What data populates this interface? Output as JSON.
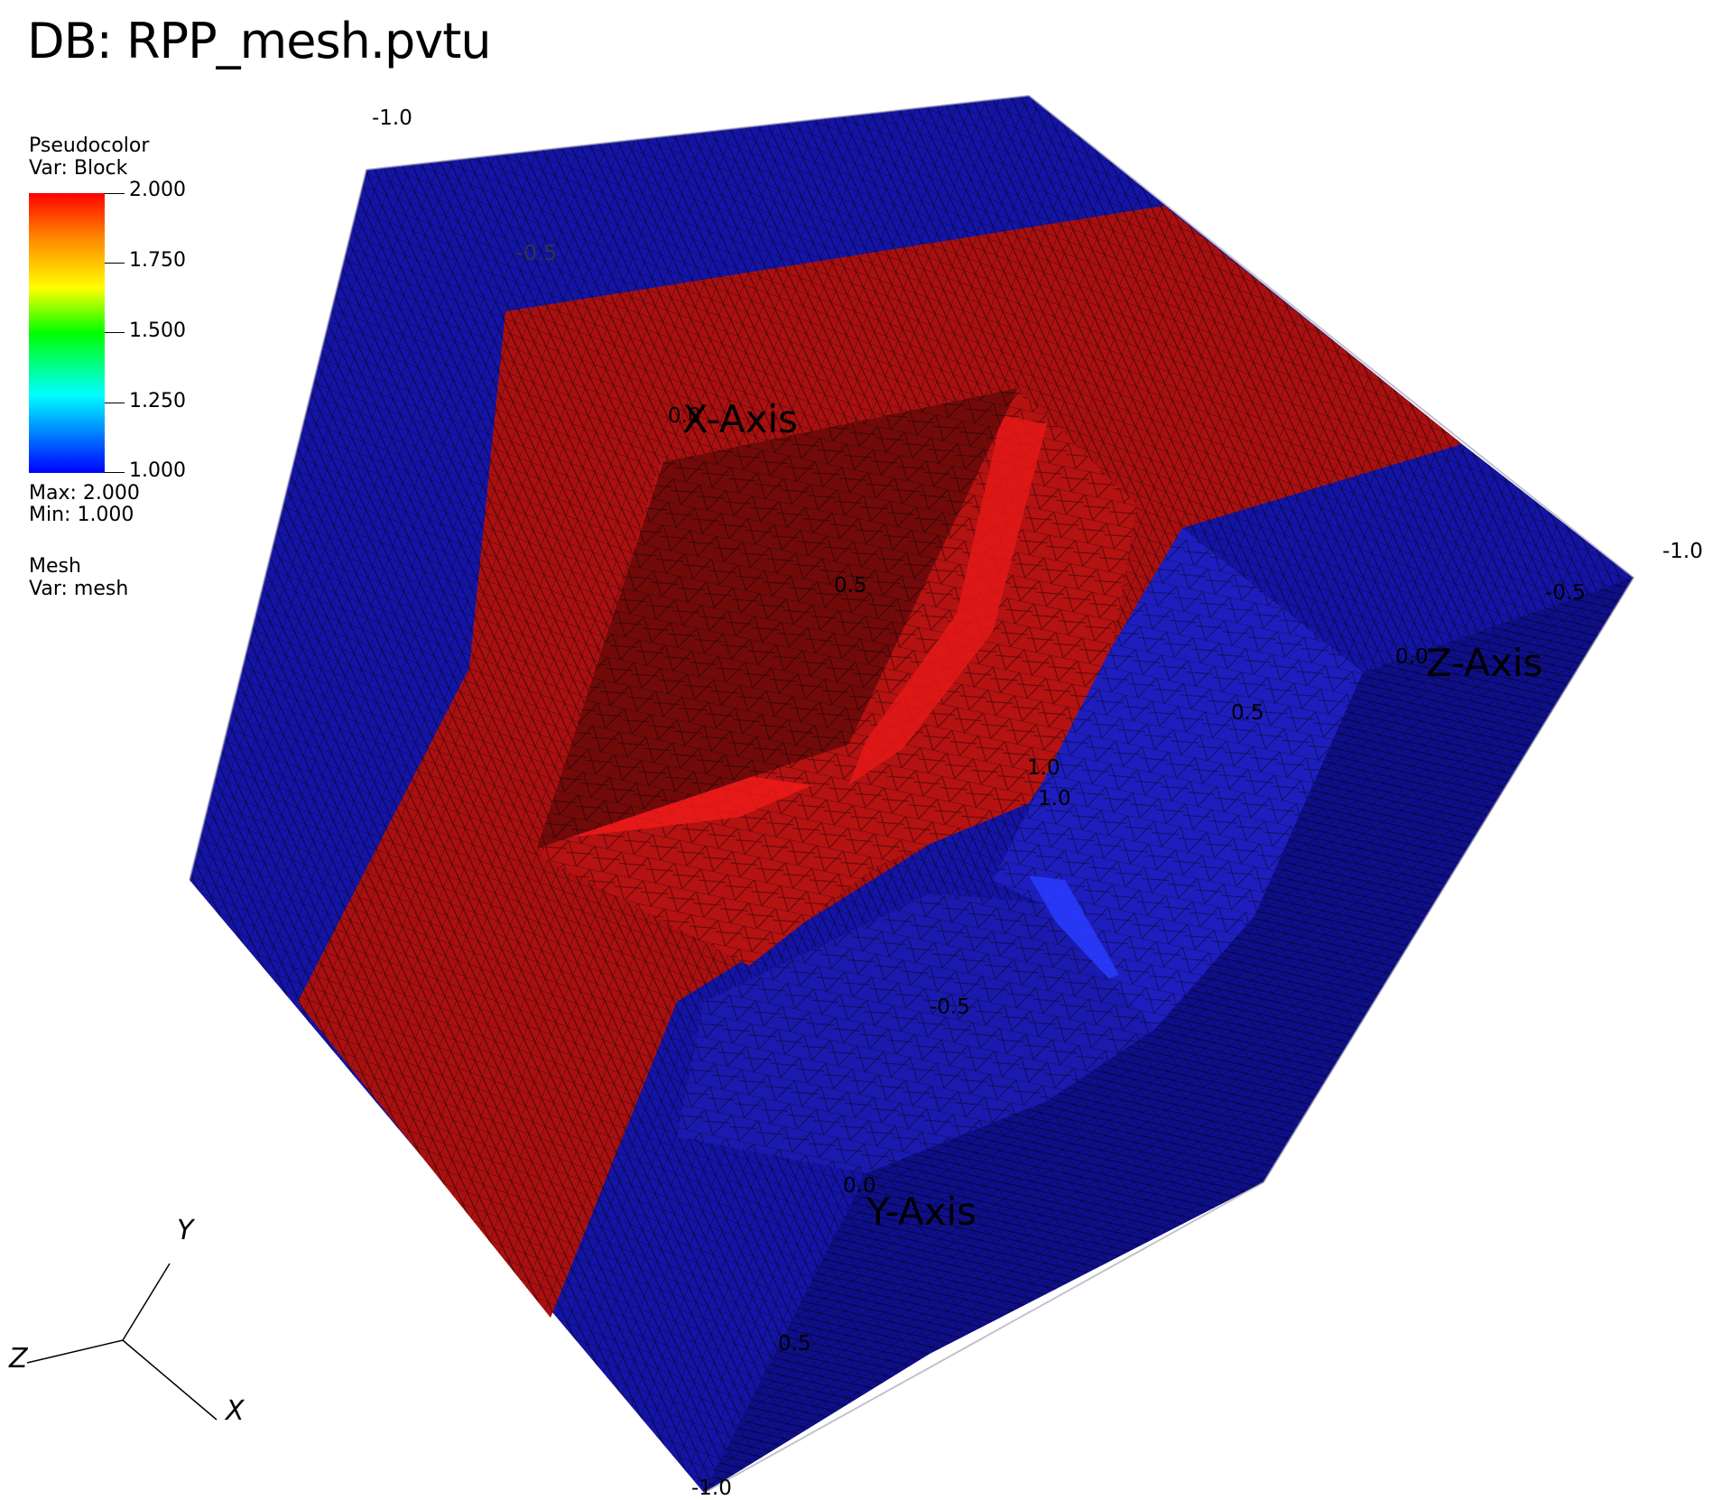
{
  "title": "DB: RPP_mesh.pvtu",
  "plot1": {
    "type_label": "Pseudocolor",
    "var_label": "Var: Block",
    "ticks": [
      "2.000",
      "1.750",
      "1.500",
      "1.250",
      "1.000"
    ],
    "max_label": "Max:  2.000",
    "min_label": "Min:  1.000"
  },
  "plot2": {
    "type_label": "Mesh",
    "var_label": "Var: mesh"
  },
  "axes": {
    "x_label": "X-Axis",
    "y_label": "Y-Axis",
    "z_label": "Z-Axis",
    "ticks": [
      "-1.0",
      "-1.0",
      "-0.5",
      "0.5",
      "-0.5",
      "0.5",
      "-0.5",
      "1.0",
      "1.0",
      "0.0",
      "0.0",
      "0.0",
      "0.5",
      "-1.0"
    ]
  },
  "triad": {
    "x": "X",
    "y": "Y",
    "z": "Z"
  },
  "colors": {
    "red": "#aa1010",
    "dark_red": "#780a0a",
    "bright_red": "#ff1414",
    "blue": "#1414a6",
    "dark_blue": "#0c0c7a",
    "bright_blue": "#1e28f0"
  }
}
